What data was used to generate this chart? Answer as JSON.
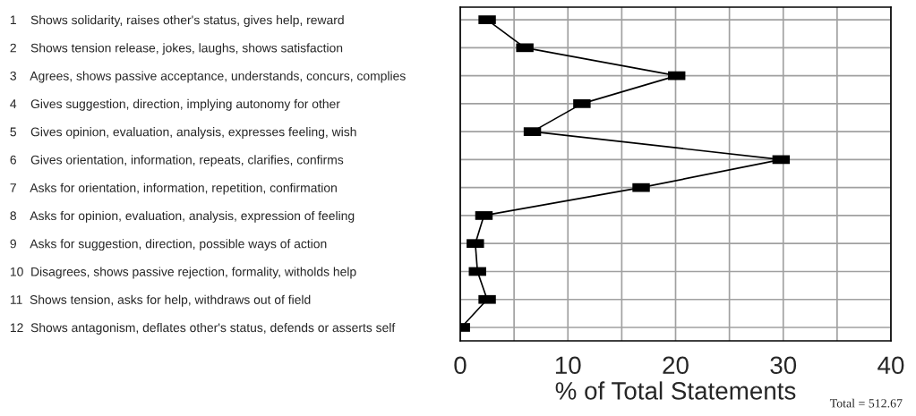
{
  "chart_data": {
    "type": "line",
    "orientation": "horizontal",
    "categories": [
      "1    Shows solidarity, raises other's status, gives help, reward",
      "2    Shows tension release, jokes, laughs, shows satisfaction",
      "3    Agrees, shows passive acceptance, understands, concurs, complies",
      "4    Gives suggestion, direction, implying autonomy for other",
      "5    Gives opinion, evaluation, analysis, expresses feeling, wish",
      "6    Gives orientation, information, repeats, clarifies, confirms",
      "7    Asks for orientation, information, repetition, confirmation",
      "8    Asks for opinion, evaluation, analysis, expression of feeling",
      "9    Asks for suggestion, direction, possible ways of action",
      "10  Disagrees, shows passive rejection, formality, witholds help",
      "11  Shows tension, asks for help, withdraws out of field",
      "12  Shows antagonism, deflates other's status, defends or asserts self"
    ],
    "series": [
      {
        "color": "#000000",
        "values": [
          2.5,
          6.0,
          20.1,
          11.3,
          6.7,
          29.8,
          16.8,
          2.2,
          1.4,
          1.6,
          2.5,
          0.1
        ]
      }
    ],
    "xlim": [
      0,
      40
    ],
    "xticks": [
      0,
      {
        "value": 5,
        "label": null
      },
      10,
      {
        "value": 15,
        "label": null
      },
      20,
      {
        "value": 25,
        "label": null
      },
      30,
      {
        "value": 35,
        "label": null
      },
      40
    ],
    "xlabel": "% of Total Statements",
    "annotations": [
      "Total = 512.67"
    ],
    "grid": true,
    "marker": "square",
    "line_style": "solid"
  }
}
